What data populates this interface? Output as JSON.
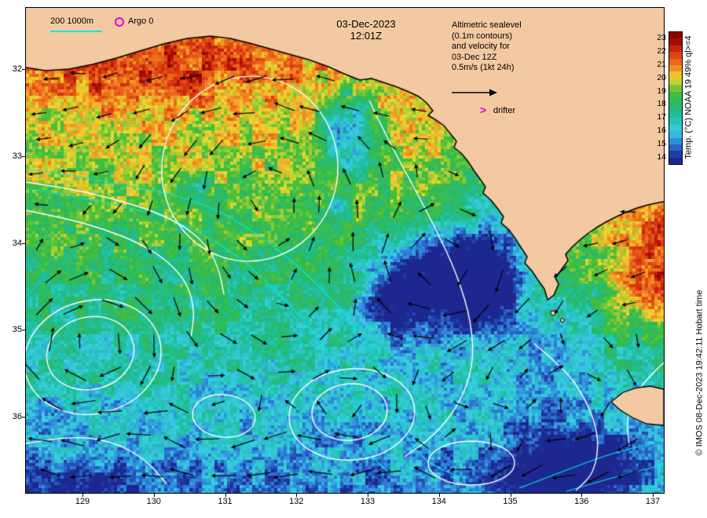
{
  "title": {
    "date": "03-Dec-2023",
    "time": "12:01Z"
  },
  "legend": {
    "isobath_label": "200 1000m",
    "argo_label": "Argo 0"
  },
  "annotation": {
    "line1": "Altimetric sealevel",
    "line2": "(0.1m contours)",
    "line3": "and velocity for",
    "line4": "03-Dec 12Z",
    "line5": "0.5m/s (1kt 24h)",
    "drifter_marker": ">",
    "drifter_label": "drifter"
  },
  "colorbar": {
    "title": "Temp. (°C) NOAA 19 49% ql>=4",
    "ticks": [
      "23",
      "22",
      "21",
      "20",
      "19",
      "18",
      "17",
      "16",
      "15",
      "14"
    ],
    "colors": [
      "#8f0000",
      "#d83410",
      "#f07820",
      "#f0d830",
      "#48c038",
      "#28b868",
      "#20c0a8",
      "#38d0e0",
      "#2e78d8",
      "#1c2890"
    ]
  },
  "credit": "© IMOS 08-Dec-2023 19:42:11 Hobart time",
  "axes": {
    "x_ticks": [
      "129",
      "130",
      "131",
      "132",
      "133",
      "134",
      "135",
      "136",
      "137"
    ],
    "y_ticks": [
      "32",
      "33",
      "34",
      "35",
      "36"
    ]
  },
  "map_colors": {
    "land": "#f3c9a2",
    "coastline": "#000000",
    "bathymetry": "#00e6e6",
    "sealevel_contour": "#ffffff",
    "velocity_arrow": "#000000",
    "marker_magenta": "#e800d8"
  }
}
